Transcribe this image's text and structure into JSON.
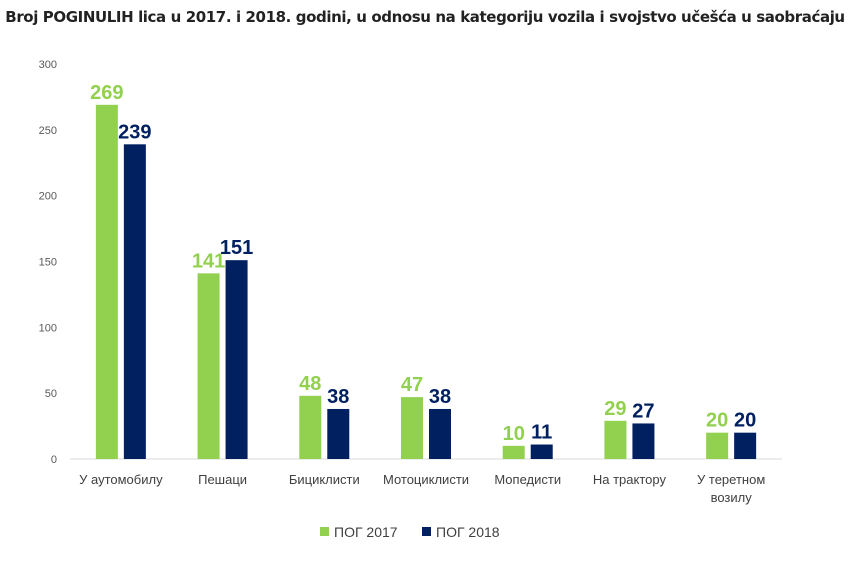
{
  "chart_data": {
    "type": "bar",
    "title": "Broj POGINULIH lica u 2017. i 2018. godini, u odnosu na kategoriju vozila i svojstvo učešća u saobraćaju",
    "categories": [
      [
        "У аутомобилу"
      ],
      [
        "Пешаци"
      ],
      [
        "Бициклисти"
      ],
      [
        "Мотоциклисти"
      ],
      [
        "Мопедисти"
      ],
      [
        "На трактору"
      ],
      [
        "У теретном",
        "возилу"
      ]
    ],
    "series": [
      {
        "name": "ПОГ 2017",
        "color": "#92D050",
        "values": [
          269,
          141,
          48,
          47,
          10,
          29,
          20
        ]
      },
      {
        "name": "ПОГ 2018",
        "color": "#002060",
        "values": [
          239,
          151,
          38,
          38,
          11,
          27,
          20
        ]
      }
    ],
    "ylim": [
      0,
      300
    ],
    "yticks": [
      0,
      50,
      100,
      150,
      200,
      250,
      300
    ],
    "grid": false,
    "data_labels": true,
    "legend": "bottom"
  }
}
